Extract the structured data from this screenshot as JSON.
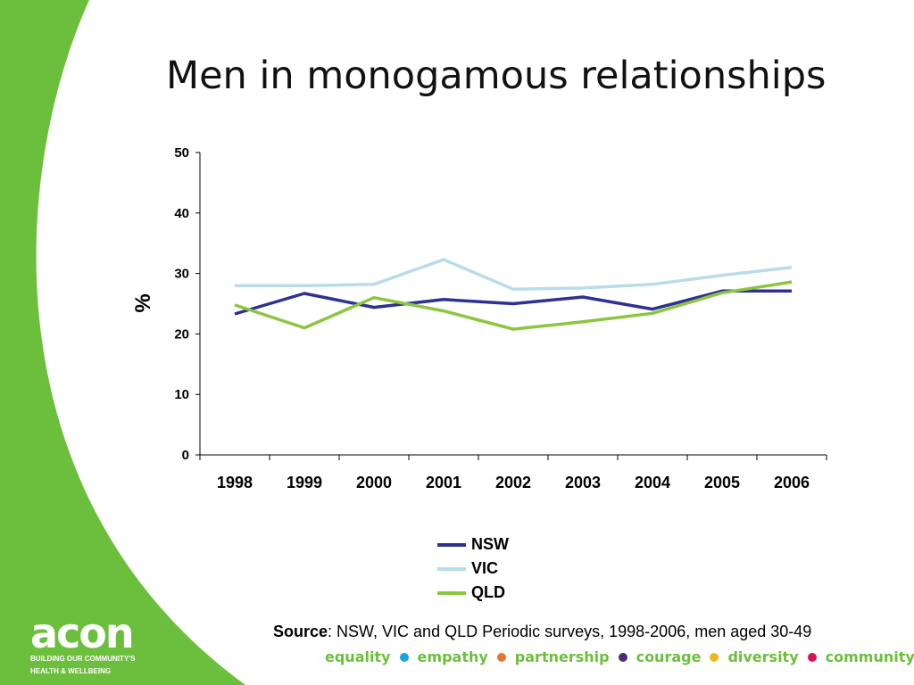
{
  "slide": {
    "title": "Men in monogamous relationships",
    "source_label": "Source",
    "source_text": ": NSW, VIC and QLD Periodic surveys, 1998-2006, men aged 30-49",
    "background_accent": "#6cbf3c"
  },
  "logo": {
    "word": "acon",
    "tagline_line1": "BUILDING OUR COMMUNITY'S",
    "tagline_line2": "HEALTH & WELLBEING"
  },
  "values_bar": {
    "words": [
      "equality",
      "empathy",
      "partnership",
      "courage",
      "diversity",
      "community"
    ],
    "dot_colors": [
      "#1aa3dd",
      "#e8782a",
      "#4b2a7b",
      "#f2b61d",
      "#d4145a"
    ]
  },
  "chart_data": {
    "type": "line",
    "title": "",
    "xlabel": "",
    "ylabel": "%",
    "ylim": [
      0,
      50
    ],
    "yticks": [
      0,
      10,
      20,
      30,
      40,
      50
    ],
    "categories": [
      "1998",
      "1999",
      "2000",
      "2001",
      "2002",
      "2003",
      "2004",
      "2005",
      "2006"
    ],
    "grid": false,
    "legend_position": "bottom",
    "series": [
      {
        "name": "NSW",
        "color": "#2e3192",
        "values": [
          23.3,
          26.7,
          24.4,
          25.7,
          25.0,
          26.1,
          24.1,
          27.1,
          27.1
        ]
      },
      {
        "name": "VIC",
        "color": "#b8dde8",
        "values": [
          28.0,
          28.0,
          28.2,
          32.3,
          27.4,
          27.6,
          28.2,
          29.7,
          31.0
        ]
      },
      {
        "name": "QLD",
        "color": "#8cc63f",
        "values": [
          24.8,
          21.0,
          26.0,
          23.8,
          20.8,
          22.0,
          23.4,
          26.8,
          28.6
        ]
      }
    ]
  }
}
